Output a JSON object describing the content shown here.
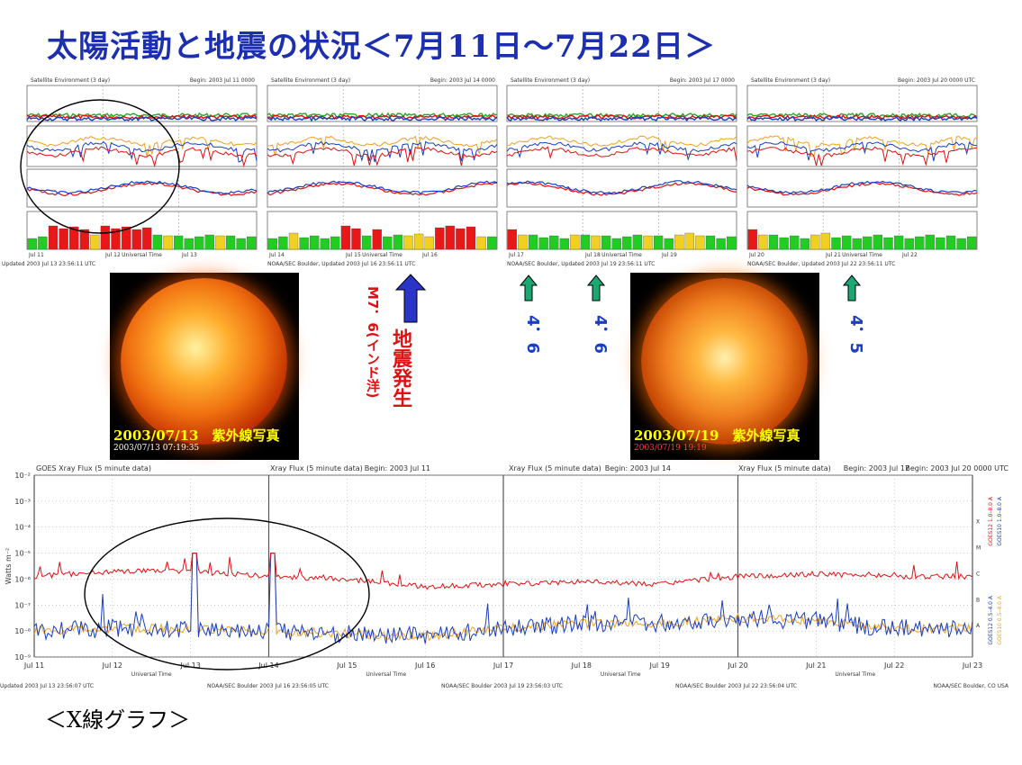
{
  "title": "太陽活動と地震の状況＜7月11日～7月22日＞",
  "xray_label": "＜X線グラフ＞",
  "colors": {
    "title": "#1b2fb0",
    "red": "#e01010",
    "blue": "#1a3fc0",
    "arrow_green": "#1aa873",
    "arrow_blue": "#2a35c8",
    "orange": "#f0a020",
    "green_bar": "#22cc22",
    "yellow_bar": "#f0d020",
    "red_bar": "#e81818"
  },
  "top_panels": [
    {
      "header_left": "Satellite Environment (3 day)",
      "header_right": "Begin: 2003 Jul 11 0000",
      "footer": "Updated 2003 Jul 13 23:56:11 UTC",
      "xlabel": "Universal Time",
      "days": [
        "Jul 11",
        "Jul 12",
        "Jul 13"
      ],
      "kp_levels": [
        "green",
        "green",
        "red",
        "red",
        "red",
        "red",
        "yellow",
        "red",
        "red",
        "red",
        "red",
        "red",
        "green",
        "yellow",
        "green",
        "green",
        "green",
        "green",
        "yellow",
        "green",
        "green",
        "green"
      ]
    },
    {
      "header_left": "Satellite Environment (3 day)",
      "header_right": "Begin: 2003 Jul 14 0000",
      "footer": "NOAA/SEC Boulder, Updated 2003 Jul 16 23:56:11 UTC",
      "xlabel": "Universal Time",
      "days": [
        "Jul 14",
        "Jul 15",
        "Jul 16"
      ],
      "kp_levels": [
        "green",
        "green",
        "yellow",
        "green",
        "green",
        "green",
        "green",
        "red",
        "red",
        "green",
        "red",
        "green",
        "green",
        "yellow",
        "yellow",
        "yellow",
        "red",
        "red",
        "red",
        "red",
        "yellow",
        "green"
      ]
    },
    {
      "header_left": "Satellite Environment (3 day)",
      "header_right": "Begin: 2003 Jul 17 0000",
      "footer": "NOAA/SEC Boulder, Updated 2003 Jul 19 23:56:11 UTC",
      "xlabel": "Universal Time",
      "days": [
        "Jul 17",
        "Jul 18",
        "Jul 19"
      ],
      "kp_levels": [
        "red",
        "yellow",
        "green",
        "green",
        "green",
        "green",
        "yellow",
        "green",
        "yellow",
        "green",
        "green",
        "green",
        "green",
        "yellow",
        "green",
        "green",
        "yellow",
        "yellow",
        "yellow",
        "green",
        "green",
        "green"
      ]
    },
    {
      "header_left": "Satellite Environment (3 day)",
      "header_right": "Begin: 2003 Jul 20 0000 UTC",
      "footer": "NOAA/SEC Boulder, Updated 2003 Jul 22 23:56:11 UTC",
      "xlabel": "Universal Time",
      "days": [
        "Jul 20",
        "Jul 21",
        "Jul 22"
      ],
      "kp_levels": [
        "red",
        "yellow",
        "green",
        "green",
        "green",
        "green",
        "yellow",
        "yellow",
        "green",
        "green",
        "green",
        "green",
        "green",
        "green",
        "green",
        "green",
        "green",
        "green",
        "green",
        "green",
        "green",
        "green"
      ]
    }
  ],
  "photo1": {
    "caption": "2003/07/13　紫外線写真",
    "timestamp": "2003/07/13 07:19:35"
  },
  "photo2": {
    "caption": "2003/07/19　紫外線写真",
    "timestamp": "2003/07/19 19:19"
  },
  "quake_main": {
    "label": "地震発生",
    "detail": "M7．6(インド洋)"
  },
  "magnitudes": [
    "4．6",
    "4．6",
    "4．5"
  ],
  "chart_data": {
    "type": "line",
    "title": "GOES Xray Flux (5 minute data)",
    "panel_headers": [
      {
        "title": "GOES Xray Flux (5 minute data)",
        "begin": "Begin: 2003 Jul 11"
      },
      {
        "title": "Xray Flux (5 minute data)",
        "begin": "Begin: 2003 Jul 14"
      },
      {
        "title": "Xray Flux (5 minute data)",
        "begin": "Begin: 2003 Jul 17"
      },
      {
        "title": "Xray Flux (5 minute data)",
        "begin": "Begin: 2003 Jul 20 0000 UTC"
      }
    ],
    "footers": [
      "Updated 2003 Jul 13 23:56:07 UTC",
      "NOAA/SEC Boulder 2003 Jul 16 23:56:05 UTC",
      "NOAA/SEC Boulder 2003 Jul 19 23:56:03 UTC",
      "NOAA/SEC Boulder 2003 Jul 22 23:56:04 UTC",
      "NOAA/SEC Boulder, CO USA"
    ],
    "xlabel": "Universal Time",
    "ylabel": "Watts m⁻²",
    "yscale": "log",
    "ylim": [
      1e-09,
      0.01
    ],
    "y_ticks": [
      "10⁻²",
      "10⁻³",
      "10⁻⁴",
      "10⁻⁵",
      "10⁻⁶",
      "10⁻⁷",
      "10⁻⁸",
      "10⁻⁹"
    ],
    "x_ticks": [
      "Jul 11",
      "Jul 12",
      "Jul 13",
      "Jul 14",
      "Jul 15",
      "Jul 16",
      "Jul 17",
      "Jul 18",
      "Jul 19",
      "Jul 20",
      "Jul 21",
      "Jul 22",
      "Jul 23"
    ],
    "flare_classes": [
      "X",
      "M",
      "C",
      "B",
      "A"
    ],
    "series": [
      {
        "name": "GOES12 1.0–8.0 A",
        "color": "#e01010",
        "band": "long"
      },
      {
        "name": "GOES10 1.0–8.0 A",
        "color": "#1a3fc0",
        "band": "long"
      },
      {
        "name": "GOES12 0.5–4.0 A",
        "color": "#1a3fc0",
        "band": "short"
      },
      {
        "name": "GOES10 0.5–4.0 A",
        "color": "#f0a020",
        "band": "short"
      }
    ],
    "long_band_daily_log10": [
      -5.9,
      -5.7,
      -5.7,
      -5.9,
      -6.0,
      -6.3,
      -6.2,
      -6.1,
      -6.2,
      -5.9,
      -5.8,
      -5.9
    ],
    "short_band_daily_log10": [
      -8.0,
      -7.9,
      -7.9,
      -8.0,
      -8.1,
      -8.2,
      -7.9,
      -7.7,
      -7.7,
      -7.5,
      -7.6,
      -7.9
    ],
    "peaks": [
      {
        "date": "Jul 13",
        "log10_flux": -5.0
      },
      {
        "date": "Jul 14",
        "log10_flux": -5.0
      }
    ]
  }
}
